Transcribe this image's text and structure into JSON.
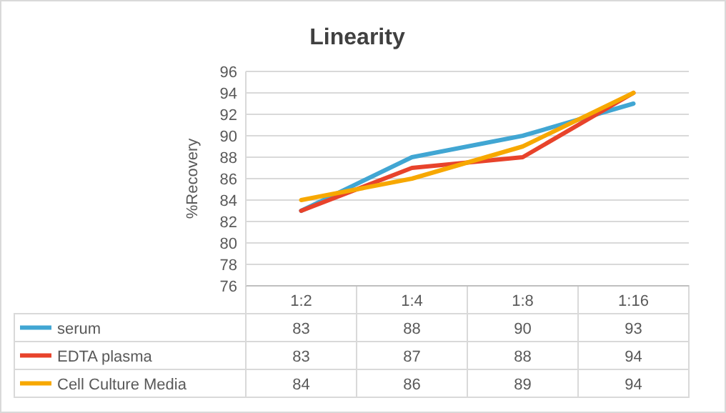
{
  "chart_data": {
    "type": "line",
    "title": "Linearity",
    "ylabel": "%Recovery",
    "categories": [
      "1:2",
      "1:4",
      "1:8",
      "1:16"
    ],
    "series": [
      {
        "name": "serum",
        "color": "#41a6d3",
        "values": [
          83,
          88,
          90,
          93
        ]
      },
      {
        "name": "EDTA plasma",
        "color": "#e8432b",
        "values": [
          83,
          87,
          88,
          94
        ]
      },
      {
        "name": "Cell Culture Media",
        "color": "#f7a800",
        "values": [
          84,
          86,
          89,
          94
        ]
      }
    ],
    "ylim": [
      76,
      96
    ],
    "yticks": [
      76,
      78,
      80,
      82,
      84,
      86,
      88,
      90,
      92,
      94,
      96
    ],
    "grid": "y",
    "data_labels": true,
    "line_style": "solid",
    "legend": "bottom"
  }
}
